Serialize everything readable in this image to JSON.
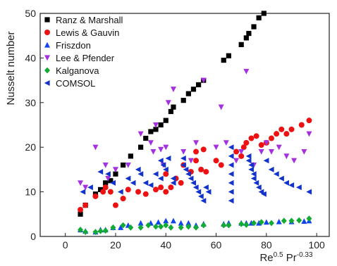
{
  "chart_data": {
    "type": "scatter",
    "title": "",
    "xlabel": {
      "base1": "Re",
      "sup1": "0.5",
      "base2": " Pr",
      "sup2": "-0.33"
    },
    "ylabel": "Nusselt number",
    "xlim": [
      -10,
      105
    ],
    "ylim": [
      0,
      50
    ],
    "xticks": [
      0,
      20,
      40,
      60,
      80,
      100
    ],
    "yticks": [
      0,
      10,
      20,
      30,
      40,
      50
    ],
    "grid": false,
    "legend_position": "top-left",
    "series": [
      {
        "name": "Ranz & Marshall",
        "color": "#000000",
        "marker": "square",
        "points": [
          [
            6,
            5
          ],
          [
            8,
            7
          ],
          [
            12,
            9.5
          ],
          [
            14,
            10.5
          ],
          [
            16,
            12
          ],
          [
            18,
            12.5
          ],
          [
            20,
            14
          ],
          [
            23,
            16
          ],
          [
            26,
            18
          ],
          [
            30,
            20
          ],
          [
            32,
            22
          ],
          [
            34,
            23.5
          ],
          [
            36,
            24
          ],
          [
            38,
            25
          ],
          [
            40,
            26
          ],
          [
            42,
            28
          ],
          [
            43,
            29
          ],
          [
            47,
            30.5
          ],
          [
            49,
            32
          ],
          [
            51,
            33
          ],
          [
            53,
            34
          ],
          [
            55,
            35
          ],
          [
            63,
            39.5
          ],
          [
            65,
            40.5
          ],
          [
            70,
            43
          ],
          [
            72,
            44.5
          ],
          [
            73,
            45.5
          ],
          [
            75,
            47
          ],
          [
            77,
            49
          ],
          [
            79,
            50
          ]
        ]
      },
      {
        "name": "Lewis & Gauvin",
        "color": "#ee1111",
        "marker": "circle",
        "points": [
          [
            6,
            6
          ],
          [
            8,
            7
          ],
          [
            12,
            9
          ],
          [
            15,
            10
          ],
          [
            16,
            11
          ],
          [
            18,
            10
          ],
          [
            20,
            7
          ],
          [
            23,
            8.5
          ],
          [
            25,
            10.5
          ],
          [
            29,
            10
          ],
          [
            32,
            9.5
          ],
          [
            36,
            10.5
          ],
          [
            38,
            11
          ],
          [
            40,
            10
          ],
          [
            42,
            11
          ],
          [
            40,
            14
          ],
          [
            44,
            13
          ],
          [
            46,
            12
          ],
          [
            47,
            16
          ],
          [
            50,
            14.5
          ],
          [
            52,
            17
          ],
          [
            54,
            15
          ],
          [
            56,
            14.5
          ],
          [
            52,
            19
          ],
          [
            55,
            19.5
          ],
          [
            60,
            17
          ],
          [
            62,
            16
          ],
          [
            68,
            19
          ],
          [
            70,
            18
          ],
          [
            71,
            20
          ],
          [
            72,
            21
          ],
          [
            74,
            22
          ],
          [
            76,
            22.5
          ],
          [
            78,
            20.5
          ],
          [
            80,
            21
          ],
          [
            82,
            22
          ],
          [
            84,
            23
          ],
          [
            86,
            24
          ],
          [
            88,
            23
          ],
          [
            90,
            24
          ],
          [
            94,
            25
          ],
          [
            97,
            26
          ]
        ]
      },
      {
        "name": "Friszdon",
        "color": "#1144ee",
        "marker": "triangle-up",
        "points": [
          [
            6,
            1.5
          ],
          [
            8,
            1.2
          ],
          [
            12,
            1
          ],
          [
            14,
            1.5
          ],
          [
            16,
            1.5
          ],
          [
            19,
            2
          ],
          [
            22,
            2
          ],
          [
            25,
            2.5
          ],
          [
            30,
            3
          ],
          [
            34,
            3
          ],
          [
            37,
            3.2
          ],
          [
            40,
            3.5
          ],
          [
            43,
            3.5
          ],
          [
            46,
            3
          ],
          [
            49,
            3
          ],
          [
            52,
            2.5
          ],
          [
            55,
            2.8
          ],
          [
            63,
            2.8
          ],
          [
            65,
            3
          ],
          [
            70,
            3
          ],
          [
            72,
            3
          ],
          [
            74,
            3
          ],
          [
            77,
            3
          ],
          [
            80,
            3.2
          ],
          [
            85,
            3.3
          ],
          [
            90,
            3.3
          ],
          [
            95,
            3.4
          ],
          [
            97,
            3.5
          ]
        ]
      },
      {
        "name": "Lee & Pfender",
        "color": "#a530e0",
        "marker": "triangle-down",
        "points": [
          [
            6,
            12
          ],
          [
            8,
            11
          ],
          [
            12,
            20
          ],
          [
            16,
            16
          ],
          [
            17,
            13
          ],
          [
            20,
            15
          ],
          [
            25,
            16
          ],
          [
            30,
            23
          ],
          [
            34,
            21
          ],
          [
            35,
            19
          ],
          [
            36,
            25
          ],
          [
            38,
            19.5
          ],
          [
            39,
            16
          ],
          [
            40,
            20
          ],
          [
            41,
            30
          ],
          [
            43,
            33
          ],
          [
            47,
            19
          ],
          [
            50,
            17
          ],
          [
            52,
            21
          ],
          [
            55,
            35
          ],
          [
            60,
            20
          ],
          [
            62,
            29
          ],
          [
            64,
            21
          ],
          [
            68,
            17
          ],
          [
            70,
            19
          ],
          [
            72,
            37
          ],
          [
            75,
            16
          ],
          [
            78,
            19
          ],
          [
            80,
            21
          ],
          [
            82,
            19
          ],
          [
            85,
            20
          ],
          [
            88,
            18
          ],
          [
            91,
            17
          ],
          [
            95,
            19
          ],
          [
            97,
            23
          ]
        ]
      },
      {
        "name": "Kalganova",
        "color": "#11aa33",
        "marker": "diamond",
        "points": [
          [
            6,
            1.5
          ],
          [
            8,
            1
          ],
          [
            12,
            1
          ],
          [
            14,
            1.2
          ],
          [
            16,
            1.3
          ],
          [
            19,
            2
          ],
          [
            23,
            2.5
          ],
          [
            26,
            2
          ],
          [
            30,
            2
          ],
          [
            33,
            2.5
          ],
          [
            36,
            2.2
          ],
          [
            38,
            2.2
          ],
          [
            40,
            2.5
          ],
          [
            42,
            2
          ],
          [
            46,
            2
          ],
          [
            49,
            2.2
          ],
          [
            52,
            2
          ],
          [
            55,
            2.5
          ],
          [
            63,
            2.5
          ],
          [
            65,
            2.5
          ],
          [
            70,
            2.8
          ],
          [
            72,
            2.6
          ],
          [
            75,
            3
          ],
          [
            78,
            3.2
          ],
          [
            82,
            3
          ],
          [
            87,
            3.5
          ],
          [
            90,
            3.5
          ],
          [
            93,
            3.6
          ],
          [
            97,
            4
          ]
        ]
      },
      {
        "name": "COMSOL",
        "color": "#1133cc",
        "marker": "triangle-left",
        "points": [
          [
            7,
            10
          ],
          [
            10,
            11
          ],
          [
            14,
            14.5
          ],
          [
            17,
            14
          ],
          [
            19,
            12
          ],
          [
            22,
            10
          ],
          [
            25,
            13
          ],
          [
            27,
            12
          ],
          [
            29,
            15
          ],
          [
            30,
            14
          ],
          [
            32,
            12
          ],
          [
            34,
            11.5
          ],
          [
            36,
            14
          ],
          [
            38,
            13
          ],
          [
            38,
            17
          ],
          [
            39,
            16
          ],
          [
            40,
            15
          ],
          [
            41,
            17.5
          ],
          [
            43,
            13
          ],
          [
            43,
            12
          ],
          [
            47,
            17.5
          ],
          [
            47,
            16
          ],
          [
            48,
            15
          ],
          [
            49,
            14
          ],
          [
            50,
            13
          ],
          [
            51,
            12
          ],
          [
            52,
            11
          ],
          [
            53,
            10
          ],
          [
            54,
            9
          ],
          [
            55,
            8
          ],
          [
            56,
            11
          ],
          [
            57,
            10
          ],
          [
            66,
            20
          ],
          [
            66,
            18
          ],
          [
            66,
            16
          ],
          [
            66,
            14
          ],
          [
            66,
            12
          ],
          [
            66,
            10
          ],
          [
            66,
            8
          ],
          [
            73,
            18
          ],
          [
            73,
            17
          ],
          [
            74,
            16
          ],
          [
            74,
            15
          ],
          [
            75,
            14
          ],
          [
            75,
            13
          ],
          [
            76,
            12
          ],
          [
            77,
            11
          ],
          [
            78,
            10
          ],
          [
            79,
            9.5
          ],
          [
            80,
            17
          ],
          [
            82,
            15
          ],
          [
            84,
            14
          ],
          [
            86,
            13
          ],
          [
            88,
            12
          ],
          [
            90,
            11.5
          ],
          [
            93,
            11
          ],
          [
            97,
            10
          ]
        ]
      }
    ]
  }
}
